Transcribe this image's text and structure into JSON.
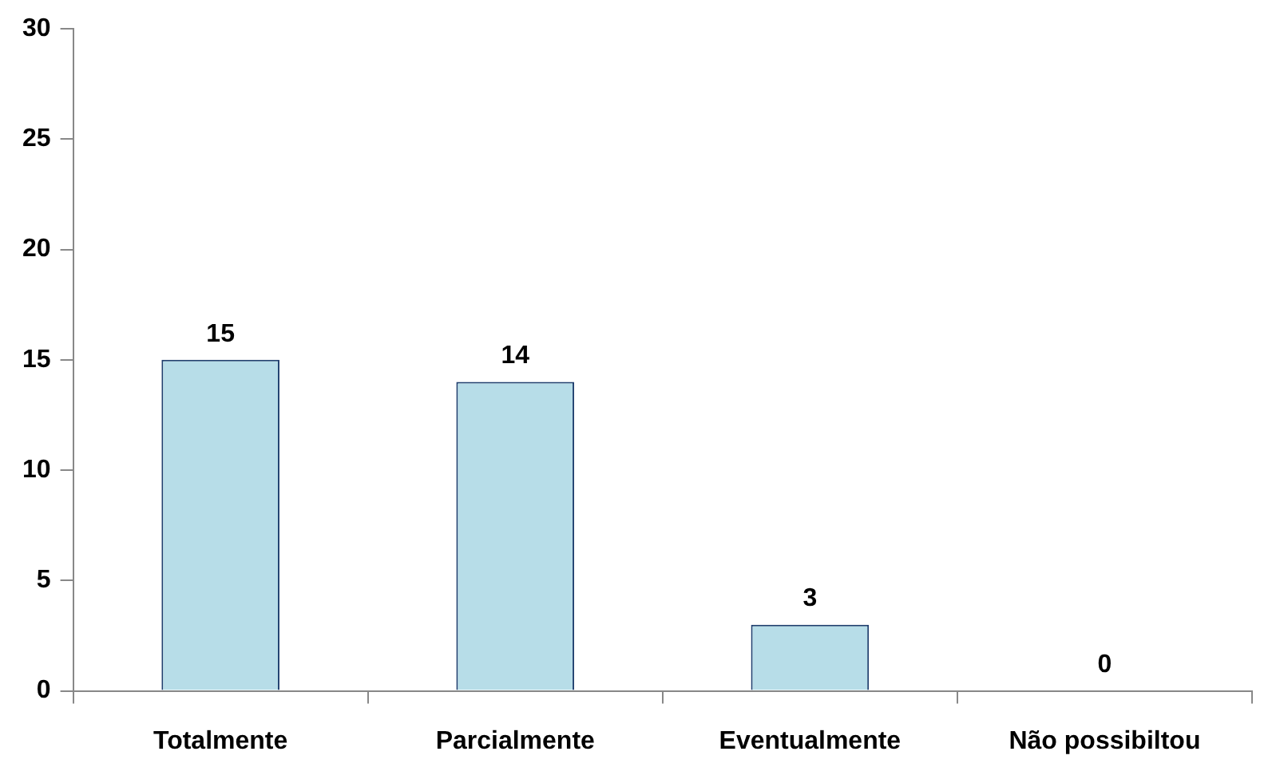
{
  "chart_data": {
    "type": "bar",
    "categories": [
      "Totalmente",
      "Parcialmente",
      "Eventualmente",
      "Não possibiltou"
    ],
    "values": [
      15,
      14,
      3,
      0
    ],
    "color": "#b7dde8",
    "ylim": [
      0,
      30
    ],
    "yticks": [
      0,
      5,
      10,
      15,
      20,
      25,
      30
    ],
    "grid": false,
    "legend": false,
    "data_labels": true
  }
}
